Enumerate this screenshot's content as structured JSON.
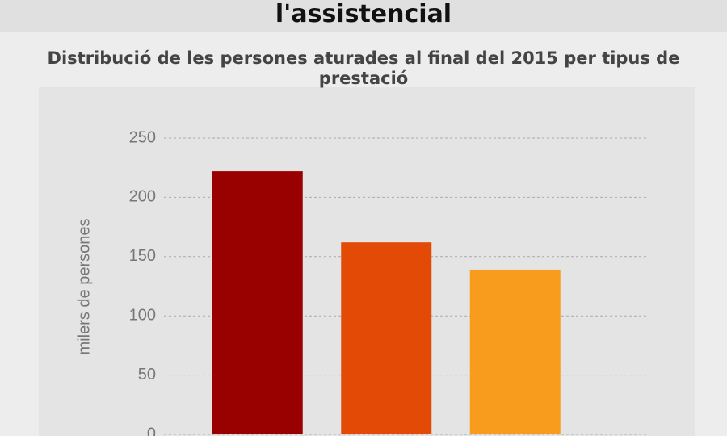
{
  "header": {
    "title": "l'assistencial"
  },
  "chart_data": {
    "type": "bar",
    "title": "Distribució de les persones aturades al final del 2015 per tipus de prestació",
    "y_label": "milers de persones",
    "categories": [
      null,
      null,
      null
    ],
    "values": [
      222,
      162,
      139
    ],
    "colors": [
      "#990000",
      "#e34a06",
      "#f89c1e"
    ],
    "ylim": [
      0,
      250
    ],
    "yticks": [
      0,
      50,
      100,
      150,
      200,
      250
    ],
    "grid": true
  }
}
